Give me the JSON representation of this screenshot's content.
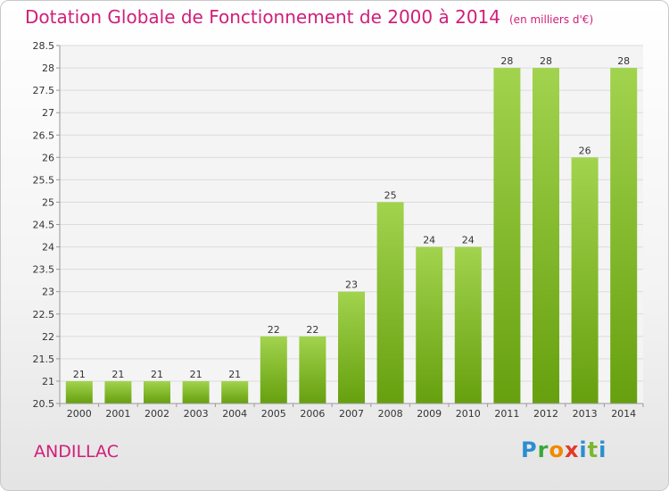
{
  "chart_data": {
    "type": "bar",
    "title": "Dotation Globale de Fonctionnement de 2000 à 2014",
    "unit_label": "(en milliers d'€)",
    "categories": [
      "2000",
      "2001",
      "2002",
      "2003",
      "2004",
      "2005",
      "2006",
      "2007",
      "2008",
      "2009",
      "2010",
      "2011",
      "2012",
      "2013",
      "2014"
    ],
    "values": [
      21,
      21,
      21,
      21,
      21,
      22,
      22,
      23,
      25,
      24,
      24,
      28,
      28,
      26,
      28
    ],
    "ylim": [
      20.5,
      28.5
    ],
    "yticks": [
      "20.5",
      "21",
      "21.5",
      "22",
      "22.5",
      "23",
      "23.5",
      "24",
      "24.5",
      "25",
      "25.5",
      "26",
      "26.5",
      "27",
      "27.5",
      "28",
      "28.5"
    ],
    "xlabel": "",
    "ylabel": "",
    "grid": true,
    "colors": {
      "bar_light": "#9ccc48",
      "bar_dark": "#6aa010",
      "title": "#d01e7a"
    }
  },
  "commune": "ANDILLAC",
  "logo": {
    "text": "Proxiti"
  }
}
